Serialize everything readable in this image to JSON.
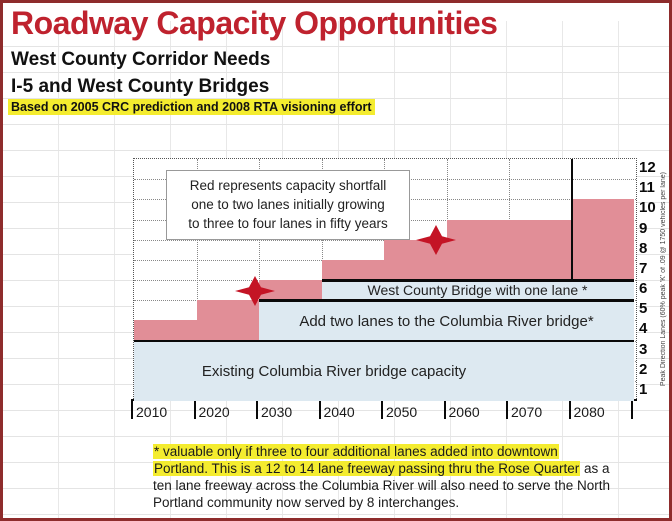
{
  "header": {
    "title": "Roadway Capacity Opportunities",
    "subtitle1": "West County Corridor Needs",
    "subtitle2": "I-5 and West County Bridges",
    "basis_note": "Based on 2005 CRC prediction and 2008 RTA visioning effort"
  },
  "colors": {
    "title_red": "#bf222e",
    "border_maroon": "#8e2c2c",
    "shortfall_red": "#e18e97",
    "capacity_blue": "#dde9f1",
    "highlight_yellow": "#f4ec2f",
    "star_red": "#c41425"
  },
  "chart_data": {
    "type": "area",
    "subtype": "stacked-step",
    "x_categories": [
      "2010",
      "2020",
      "2030",
      "2040",
      "2050",
      "2060",
      "2070",
      "2080"
    ],
    "y_ticks": [
      "1",
      "2",
      "3",
      "4",
      "5",
      "6",
      "7",
      "8",
      "9",
      "10",
      "11",
      "12"
    ],
    "ylim": [
      0,
      12
    ],
    "grid": true,
    "ylabel": "Peak Direction Lanes (60% peak 'K' of .09 @ 1750 vehicles per lane)",
    "series": [
      {
        "name": "Existing Columbia River bridge capacity",
        "role": "capacity",
        "color": "#dde9f1",
        "values": [
          3,
          3,
          3,
          3,
          3,
          3,
          3,
          3
        ]
      },
      {
        "name": "Add two lanes to the Columbia River bridge*",
        "role": "capacity",
        "color": "#dde9f1",
        "values": [
          0,
          0,
          2,
          2,
          2,
          2,
          2,
          2
        ]
      },
      {
        "name": "West County Bridge with one lane *",
        "role": "capacity",
        "color": "#dde9f1",
        "values": [
          0,
          0,
          0,
          1,
          1,
          1,
          1,
          1
        ]
      },
      {
        "name": "Capacity shortfall",
        "role": "shortfall",
        "color": "#e18e97",
        "values": [
          1,
          2,
          1,
          1,
          2,
          3,
          3,
          4
        ]
      }
    ],
    "annotations": {
      "note_lines": [
        "Red represents capacity shortfall",
        "one to two lanes initially growing",
        "to three to four lanes in fifty years"
      ],
      "stars": [
        {
          "x_decade_frac": 1.93,
          "lane": 5.45
        },
        {
          "x_decade_frac": 4.83,
          "lane": 7.98
        }
      ],
      "vline": {
        "x_decade_index": 7,
        "from_lane": 6,
        "to_lane": 12
      }
    }
  },
  "footnote": {
    "line1": "* valuable only if three to four additional lanes added into downtown",
    "line2_highlight": "Portland.  This is a 12 to 14 lane freeway passing thru the Rose Quarter",
    "line2_rest": " as a",
    "line3": "ten lane freeway across the Columbia River will also need to serve the North",
    "line4": "Portland community now served by 8 interchanges."
  }
}
